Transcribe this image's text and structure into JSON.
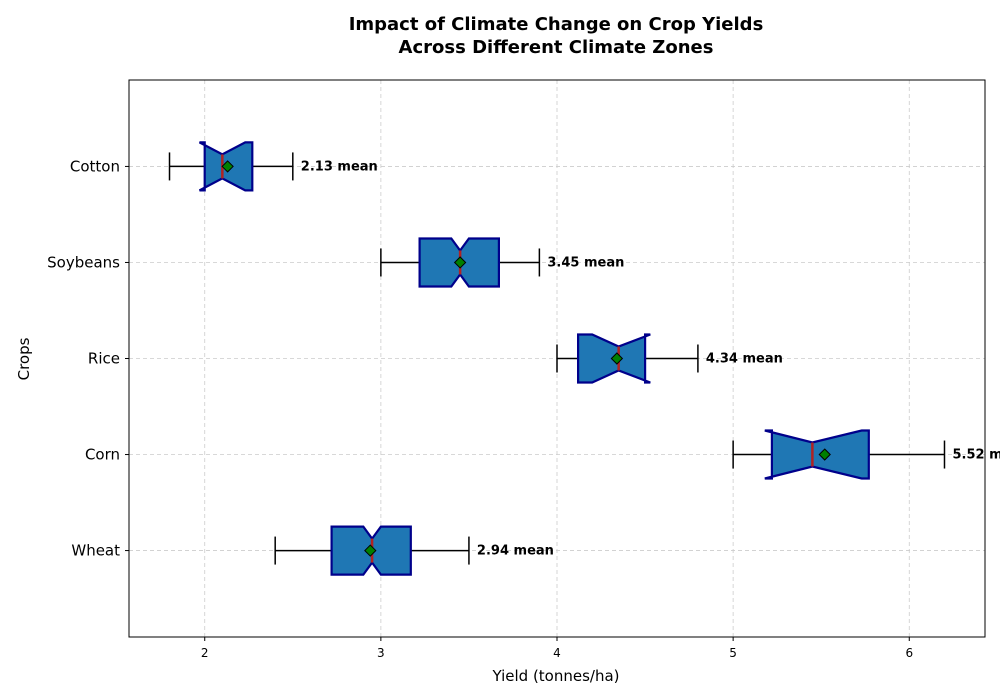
{
  "chart_data": {
    "type": "boxplot",
    "orientation": "horizontal",
    "notched": true,
    "title_lines": [
      "Impact of Climate Change on Crop Yields",
      "Across Different Climate Zones"
    ],
    "xlabel": "Yield (tonnes/ha)",
    "ylabel": "Crops",
    "xlim": [
      1.57,
      6.43
    ],
    "xticks": [
      2,
      3,
      4,
      5,
      6
    ],
    "grid": true,
    "mean_suffix": " mean",
    "categories": [
      "Wheat",
      "Corn",
      "Rice",
      "Soybeans",
      "Cotton"
    ],
    "boxes": [
      {
        "name": "Wheat",
        "whisker_low": 2.4,
        "q1": 2.72,
        "median": 2.95,
        "q3": 3.17,
        "whisker_high": 3.5,
        "notch_low": 2.9,
        "notch_high": 3.0,
        "mean": 2.94,
        "mean_label": "2.94"
      },
      {
        "name": "Corn",
        "whisker_low": 5.0,
        "q1": 5.22,
        "median": 5.45,
        "q3": 5.77,
        "whisker_high": 6.2,
        "notch_low": 5.18,
        "notch_high": 5.73,
        "mean": 5.52,
        "mean_label": "5.52"
      },
      {
        "name": "Rice",
        "whisker_low": 4.0,
        "q1": 4.12,
        "median": 4.35,
        "q3": 4.5,
        "whisker_high": 4.8,
        "notch_low": 4.2,
        "notch_high": 4.53,
        "mean": 4.34,
        "mean_label": "4.34"
      },
      {
        "name": "Soybeans",
        "whisker_low": 3.0,
        "q1": 3.22,
        "median": 3.45,
        "q3": 3.67,
        "whisker_high": 3.9,
        "notch_low": 3.4,
        "notch_high": 3.5,
        "mean": 3.45,
        "mean_label": "3.45"
      },
      {
        "name": "Cotton",
        "whisker_low": 1.8,
        "q1": 2.0,
        "median": 2.1,
        "q3": 2.27,
        "whisker_high": 2.5,
        "notch_low": 1.97,
        "notch_high": 2.23,
        "mean": 2.13,
        "mean_label": "2.13"
      }
    ],
    "colors": {
      "box_fill": "#1f77b4",
      "box_edge": "#00008b",
      "median": "#b22222",
      "mean_marker": "#008000",
      "whisker": "#000000",
      "grid": "#cccccc"
    }
  }
}
